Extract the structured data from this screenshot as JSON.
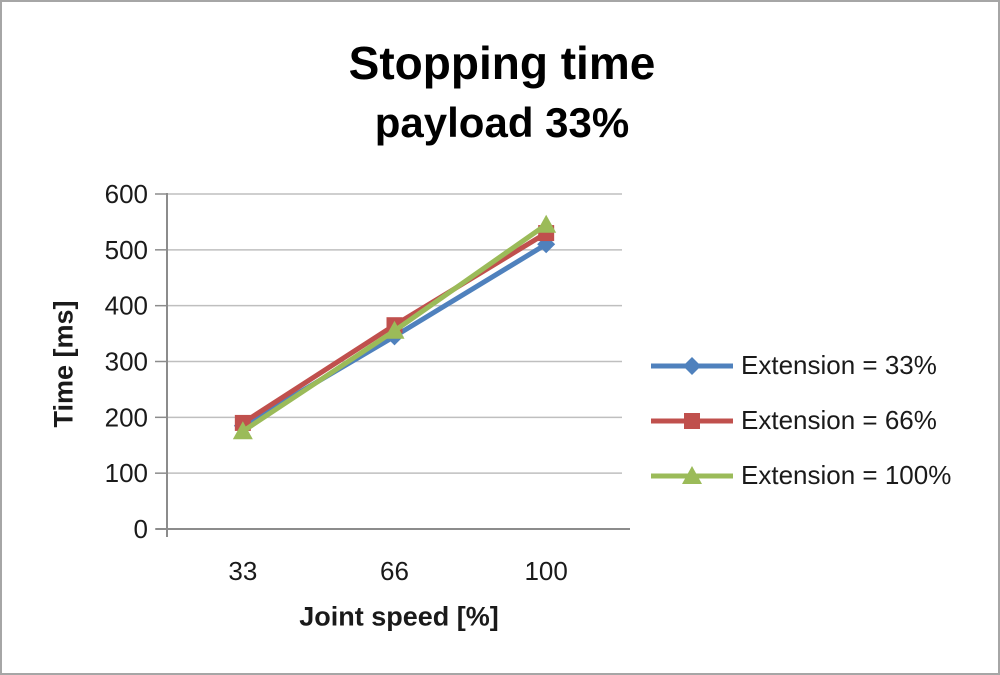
{
  "figure": {
    "background": "#ffffff",
    "border_color": "#a6a6a6"
  },
  "chart_data": {
    "type": "line",
    "title": "Stopping time",
    "subtitle": "payload 33%",
    "xlabel": "Joint speed [%]",
    "ylabel": "Time [ms]",
    "categories": [
      "33",
      "66",
      "100"
    ],
    "x_values": [
      33,
      66,
      100
    ],
    "series": [
      {
        "name": "Extension = 33%",
        "marker": "diamond",
        "color": "#4F81BD",
        "values": [
          185,
          345,
          510
        ]
      },
      {
        "name": "Extension = 66%",
        "marker": "square",
        "color": "#C0504D",
        "values": [
          190,
          365,
          530
        ]
      },
      {
        "name": "Extension = 100%",
        "marker": "triangle",
        "color": "#9BBB59",
        "values": [
          175,
          355,
          545
        ]
      }
    ],
    "ylim": [
      0,
      600
    ],
    "ytick_step": 100,
    "yticks": [
      0,
      100,
      200,
      300,
      400,
      500,
      600
    ],
    "grid": true,
    "legend_position": "right",
    "colors": {
      "grid": "#bfbfbf",
      "axis": "#8c8c8c",
      "tick_text": "#1a1a1a",
      "title_text": "#000000"
    }
  }
}
